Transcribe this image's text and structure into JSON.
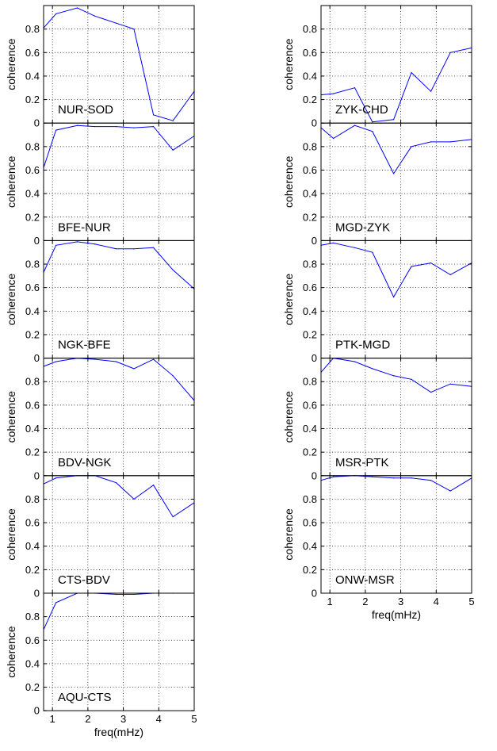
{
  "chart_data": [
    {
      "type": "line",
      "title": "NUR-SOD",
      "xlabel": "",
      "ylabel": "coherence",
      "xlim": [
        0.75,
        5
      ],
      "ylim": [
        0,
        1
      ],
      "x": [
        0.75,
        1.1,
        1.7,
        2.2,
        2.8,
        3.3,
        3.85,
        4.4,
        5.0
      ],
      "series": [
        {
          "values": [
            0.81,
            0.93,
            0.98,
            0.91,
            0.85,
            0.8,
            0.07,
            0.02,
            0.27
          ]
        }
      ],
      "xticks": [
        1,
        2,
        3,
        4,
        5
      ],
      "yticks": [
        0,
        0.2,
        0.4,
        0.6,
        0.8
      ],
      "grid": true,
      "color": "#0000ff"
    },
    {
      "type": "line",
      "title": "BFE-NUR",
      "xlabel": "",
      "ylabel": "coherence",
      "xlim": [
        0.75,
        5
      ],
      "ylim": [
        0,
        1
      ],
      "x": [
        0.75,
        1.1,
        1.7,
        2.2,
        2.8,
        3.3,
        3.85,
        4.4,
        5.0
      ],
      "series": [
        {
          "values": [
            0.62,
            0.94,
            0.98,
            0.97,
            0.97,
            0.96,
            0.97,
            0.77,
            0.89
          ]
        }
      ],
      "xticks": [
        1,
        2,
        3,
        4,
        5
      ],
      "yticks": [
        0,
        0.2,
        0.4,
        0.6,
        0.8
      ],
      "grid": true,
      "color": "#0000ff"
    },
    {
      "type": "line",
      "title": "NGK-BFE",
      "xlabel": "",
      "ylabel": "coherence",
      "xlim": [
        0.75,
        5
      ],
      "ylim": [
        0,
        1
      ],
      "x": [
        0.75,
        1.1,
        1.7,
        2.2,
        2.8,
        3.3,
        3.85,
        4.4,
        5.0
      ],
      "series": [
        {
          "values": [
            0.73,
            0.96,
            0.99,
            0.97,
            0.93,
            0.93,
            0.94,
            0.75,
            0.59
          ]
        }
      ],
      "xticks": [
        1,
        2,
        3,
        4,
        5
      ],
      "yticks": [
        0,
        0.2,
        0.4,
        0.6,
        0.8
      ],
      "grid": true,
      "color": "#0000ff"
    },
    {
      "type": "line",
      "title": "BDV-NGK",
      "xlabel": "",
      "ylabel": "coherence",
      "xlim": [
        0.75,
        5
      ],
      "ylim": [
        0,
        1
      ],
      "x": [
        0.75,
        1.1,
        1.7,
        2.2,
        2.8,
        3.3,
        3.85,
        4.4,
        5.0
      ],
      "series": [
        {
          "values": [
            0.93,
            0.97,
            1.0,
            0.99,
            0.97,
            0.91,
            0.99,
            0.85,
            0.64
          ]
        }
      ],
      "xticks": [
        1,
        2,
        3,
        4,
        5
      ],
      "yticks": [
        0,
        0.2,
        0.4,
        0.6,
        0.8
      ],
      "grid": true,
      "color": "#0000ff"
    },
    {
      "type": "line",
      "title": "CTS-BDV",
      "xlabel": "",
      "ylabel": "coherence",
      "xlim": [
        0.75,
        5
      ],
      "ylim": [
        0,
        1
      ],
      "x": [
        0.75,
        1.1,
        1.7,
        2.2,
        2.8,
        3.3,
        3.85,
        4.4,
        5.0
      ],
      "series": [
        {
          "values": [
            0.93,
            0.98,
            1.0,
            1.0,
            0.94,
            0.8,
            0.92,
            0.65,
            0.77
          ]
        }
      ],
      "xticks": [
        1,
        2,
        3,
        4,
        5
      ],
      "yticks": [
        0,
        0.2,
        0.4,
        0.6,
        0.8
      ],
      "grid": true,
      "color": "#0000ff"
    },
    {
      "type": "line",
      "title": "AQU-CTS",
      "xlabel": "freq(mHz)",
      "ylabel": "coherence",
      "xlim": [
        0.75,
        5
      ],
      "ylim": [
        0,
        1
      ],
      "x": [
        0.75,
        1.1,
        1.7,
        2.2,
        2.8,
        3.3,
        3.85,
        4.4,
        5.0
      ],
      "series": [
        {
          "values": [
            0.69,
            0.92,
            1.0,
            1.0,
            0.99,
            0.99,
            1.0,
            1.0,
            1.0
          ]
        }
      ],
      "xticks": [
        1,
        2,
        3,
        4,
        5
      ],
      "yticks": [
        0,
        0.2,
        0.4,
        0.6,
        0.8
      ],
      "grid": true,
      "color": "#0000ff"
    },
    {
      "type": "line",
      "title": "ZYK-CHD",
      "xlabel": "",
      "ylabel": "coherence",
      "xlim": [
        0.75,
        5
      ],
      "ylim": [
        0,
        1
      ],
      "x": [
        0.75,
        1.1,
        1.7,
        2.2,
        2.8,
        3.3,
        3.85,
        4.4,
        5.0
      ],
      "series": [
        {
          "values": [
            0.24,
            0.25,
            0.3,
            0.01,
            0.03,
            0.43,
            0.27,
            0.6,
            0.64
          ]
        }
      ],
      "xticks": [
        1,
        2,
        3,
        4,
        5
      ],
      "yticks": [
        0,
        0.2,
        0.4,
        0.6,
        0.8
      ],
      "grid": true,
      "color": "#0000ff"
    },
    {
      "type": "line",
      "title": "MGD-ZYK",
      "xlabel": "",
      "ylabel": "coherence",
      "xlim": [
        0.75,
        5
      ],
      "ylim": [
        0,
        1
      ],
      "x": [
        0.75,
        1.1,
        1.7,
        2.2,
        2.8,
        3.3,
        3.85,
        4.4,
        5.0
      ],
      "series": [
        {
          "values": [
            0.96,
            0.87,
            0.98,
            0.93,
            0.57,
            0.8,
            0.84,
            0.84,
            0.86
          ]
        }
      ],
      "xticks": [
        1,
        2,
        3,
        4,
        5
      ],
      "yticks": [
        0,
        0.2,
        0.4,
        0.6,
        0.8
      ],
      "grid": true,
      "color": "#0000ff"
    },
    {
      "type": "line",
      "title": "PTK-MGD",
      "xlabel": "",
      "ylabel": "coherence",
      "xlim": [
        0.75,
        5
      ],
      "ylim": [
        0,
        1
      ],
      "x": [
        0.75,
        1.1,
        1.7,
        2.2,
        2.8,
        3.3,
        3.85,
        4.4,
        5.0
      ],
      "series": [
        {
          "values": [
            0.96,
            0.98,
            0.94,
            0.9,
            0.52,
            0.78,
            0.81,
            0.71,
            0.81
          ]
        }
      ],
      "xticks": [
        1,
        2,
        3,
        4,
        5
      ],
      "yticks": [
        0,
        0.2,
        0.4,
        0.6,
        0.8
      ],
      "grid": true,
      "color": "#0000ff"
    },
    {
      "type": "line",
      "title": "MSR-PTK",
      "xlabel": "",
      "ylabel": "coherence",
      "xlim": [
        0.75,
        5
      ],
      "ylim": [
        0,
        1
      ],
      "x": [
        0.75,
        1.1,
        1.7,
        2.2,
        2.8,
        3.3,
        3.85,
        4.4,
        5.0
      ],
      "series": [
        {
          "values": [
            0.88,
            1.0,
            0.97,
            0.91,
            0.85,
            0.82,
            0.71,
            0.78,
            0.76
          ]
        }
      ],
      "xticks": [
        1,
        2,
        3,
        4,
        5
      ],
      "yticks": [
        0,
        0.2,
        0.4,
        0.6,
        0.8
      ],
      "grid": true,
      "color": "#0000ff"
    },
    {
      "type": "line",
      "title": "ONW-MSR",
      "xlabel": "freq(mHz)",
      "ylabel": "coherence",
      "xlim": [
        0.75,
        5
      ],
      "ylim": [
        0,
        1
      ],
      "x": [
        0.75,
        1.1,
        1.7,
        2.2,
        2.8,
        3.3,
        3.85,
        4.4,
        5.0
      ],
      "series": [
        {
          "values": [
            0.96,
            0.99,
            1.0,
            0.99,
            0.98,
            0.98,
            0.96,
            0.87,
            0.98
          ]
        }
      ],
      "xticks": [
        1,
        2,
        3,
        4,
        5
      ],
      "yticks": [
        0,
        0.2,
        0.4,
        0.6,
        0.8
      ],
      "grid": true,
      "color": "#0000ff"
    }
  ]
}
